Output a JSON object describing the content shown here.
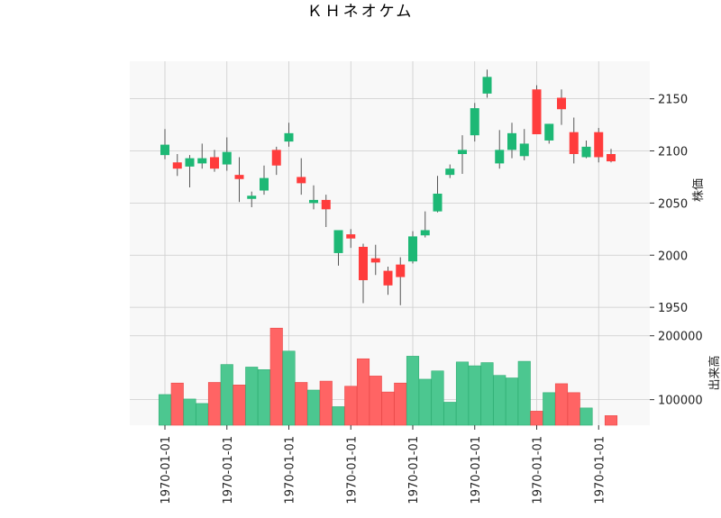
{
  "colors": {
    "up": "#1db875",
    "down": "#ff3c3c",
    "vol_up": "#4cc790",
    "vol_down": "#ff6464",
    "wick": "#555555",
    "grid": "#cccccc",
    "panel_bg": "#f8f8f8"
  },
  "chart_data": {
    "type": "candlestick",
    "title": "ＫＨネオケム",
    "price_axis": {
      "label": "株価",
      "ticks": [
        1950,
        2000,
        2050,
        2100,
        2150
      ],
      "range": [
        1938,
        2186
      ]
    },
    "volume_axis": {
      "label": "出来高",
      "ticks": [
        100000,
        200000
      ],
      "tick_labels": [
        "100000",
        "200000"
      ],
      "range": [
        60000,
        225000
      ]
    },
    "x_tick_labels": [
      "1970-01-01",
      "1970-01-01",
      "1970-01-01",
      "1970-01-01",
      "1970-01-01",
      "1970-01-01",
      "1970-01-01",
      "1970-01-01"
    ],
    "x_tick_index": [
      0,
      5,
      10,
      15,
      20,
      25,
      30,
      35
    ],
    "grid": true,
    "candles": [
      {
        "o": 2096,
        "h": 2121,
        "l": 2092,
        "c": 2106,
        "v": 108000
      },
      {
        "o": 2089,
        "h": 2097,
        "l": 2076,
        "c": 2083,
        "v": 126000
      },
      {
        "o": 2085,
        "h": 2096,
        "l": 2065,
        "c": 2093,
        "v": 101000
      },
      {
        "o": 2088,
        "h": 2107,
        "l": 2083,
        "c": 2093,
        "v": 94000
      },
      {
        "o": 2094,
        "h": 2101,
        "l": 2080,
        "c": 2083,
        "v": 127000
      },
      {
        "o": 2087,
        "h": 2113,
        "l": 2081,
        "c": 2099,
        "v": 155000
      },
      {
        "o": 2077,
        "h": 2094,
        "l": 2051,
        "c": 2073,
        "v": 123000
      },
      {
        "o": 2054,
        "h": 2061,
        "l": 2046,
        "c": 2057,
        "v": 151000
      },
      {
        "o": 2062,
        "h": 2086,
        "l": 2058,
        "c": 2074,
        "v": 147000
      },
      {
        "o": 2101,
        "h": 2104,
        "l": 2077,
        "c": 2086,
        "v": 212000
      },
      {
        "o": 2109,
        "h": 2127,
        "l": 2104,
        "c": 2117,
        "v": 176000
      },
      {
        "o": 2075,
        "h": 2093,
        "l": 2058,
        "c": 2069,
        "v": 127000
      },
      {
        "o": 2050,
        "h": 2067,
        "l": 2044,
        "c": 2053,
        "v": 115000
      },
      {
        "o": 2053,
        "h": 2058,
        "l": 2027,
        "c": 2044,
        "v": 129000
      },
      {
        "o": 2002,
        "h": 2024,
        "l": 1990,
        "c": 2024,
        "v": 89000
      },
      {
        "o": 2020,
        "h": 2025,
        "l": 2007,
        "c": 2016,
        "v": 121000
      },
      {
        "o": 2008,
        "h": 2011,
        "l": 1954,
        "c": 1976,
        "v": 164000
      },
      {
        "o": 1997,
        "h": 2010,
        "l": 1981,
        "c": 1993,
        "v": 137000
      },
      {
        "o": 1985,
        "h": 1989,
        "l": 1962,
        "c": 1971,
        "v": 112000
      },
      {
        "o": 1991,
        "h": 1998,
        "l": 1952,
        "c": 1979,
        "v": 126000
      },
      {
        "o": 1994,
        "h": 2023,
        "l": 1992,
        "c": 2018,
        "v": 168000
      },
      {
        "o": 2019,
        "h": 2042,
        "l": 2017,
        "c": 2024,
        "v": 132000
      },
      {
        "o": 2042,
        "h": 2076,
        "l": 2041,
        "c": 2059,
        "v": 145000
      },
      {
        "o": 2077,
        "h": 2087,
        "l": 2074,
        "c": 2083,
        "v": 96000
      },
      {
        "o": 2097,
        "h": 2115,
        "l": 2078,
        "c": 2101,
        "v": 159000
      },
      {
        "o": 2115,
        "h": 2146,
        "l": 2109,
        "c": 2141,
        "v": 153000
      },
      {
        "o": 2155,
        "h": 2178,
        "l": 2151,
        "c": 2171,
        "v": 158000
      },
      {
        "o": 2088,
        "h": 2120,
        "l": 2083,
        "c": 2101,
        "v": 138000
      },
      {
        "o": 2101,
        "h": 2127,
        "l": 2093,
        "c": 2117,
        "v": 134000
      },
      {
        "o": 2095,
        "h": 2121,
        "l": 2091,
        "c": 2107,
        "v": 160000
      },
      {
        "o": 2159,
        "h": 2163,
        "l": 2116,
        "c": 2116,
        "v": 82000
      },
      {
        "o": 2110,
        "h": 2126,
        "l": 2107,
        "c": 2126,
        "v": 111000
      },
      {
        "o": 2151,
        "h": 2159,
        "l": 2125,
        "c": 2140,
        "v": 125000
      },
      {
        "o": 2118,
        "h": 2132,
        "l": 2088,
        "c": 2097,
        "v": 111000
      },
      {
        "o": 2094,
        "h": 2110,
        "l": 2093,
        "c": 2104,
        "v": 87000
      },
      {
        "o": 2118,
        "h": 2122,
        "l": 2089,
        "c": 2094,
        "v": 58000
      },
      {
        "o": 2097,
        "h": 2102,
        "l": 2089,
        "c": 2090,
        "v": 75000
      }
    ]
  }
}
